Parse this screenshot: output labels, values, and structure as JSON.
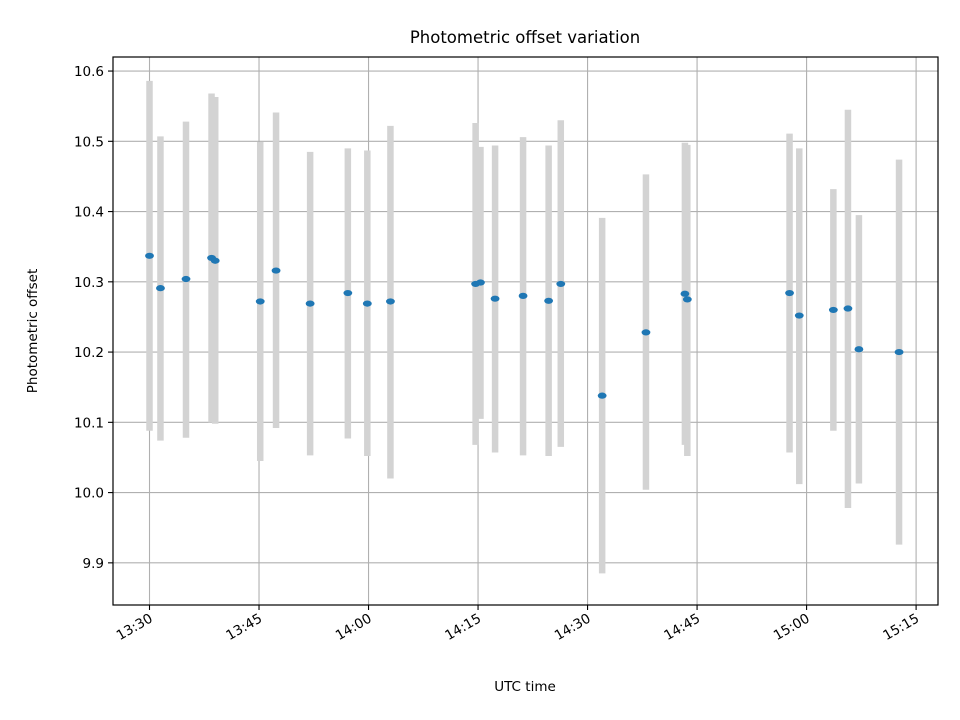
{
  "chart_data": {
    "type": "scatter",
    "title": "Photometric offset variation",
    "xlabel": "UTC time",
    "ylabel": "Photometric offset",
    "xlim": [
      "13:25",
      "15:18"
    ],
    "ylim": [
      9.84,
      10.62
    ],
    "x_ticks": [
      "13:30",
      "13:45",
      "14:00",
      "14:15",
      "14:30",
      "14:45",
      "15:00",
      "15:15"
    ],
    "y_ticks": [
      "9.9",
      "10.0",
      "10.1",
      "10.2",
      "10.3",
      "10.4",
      "10.5",
      "10.6"
    ],
    "grid": true,
    "legend": "none",
    "colors": {
      "points": "#1f77b4",
      "errorbars": "#d3d3d3",
      "grid": "#b0b0b0"
    },
    "series": [
      {
        "points": [
          {
            "x": "13:30:00",
            "y": 10.337,
            "y_low": 10.088,
            "y_high": 10.586
          },
          {
            "x": "13:31:30",
            "y": 10.291,
            "y_low": 10.074,
            "y_high": 10.507
          },
          {
            "x": "13:35:00",
            "y": 10.304,
            "y_low": 10.078,
            "y_high": 10.528
          },
          {
            "x": "13:38:30",
            "y": 10.334,
            "y_low": 10.1,
            "y_high": 10.568
          },
          {
            "x": "13:39:00",
            "y": 10.33,
            "y_low": 10.098,
            "y_high": 10.563
          },
          {
            "x": "13:45:10",
            "y": 10.272,
            "y_low": 10.045,
            "y_high": 10.499
          },
          {
            "x": "13:47:20",
            "y": 10.316,
            "y_low": 10.092,
            "y_high": 10.541
          },
          {
            "x": "13:52:00",
            "y": 10.269,
            "y_low": 10.053,
            "y_high": 10.485
          },
          {
            "x": "13:57:10",
            "y": 10.284,
            "y_low": 10.077,
            "y_high": 10.49
          },
          {
            "x": "13:59:50",
            "y": 10.269,
            "y_low": 10.052,
            "y_high": 10.487
          },
          {
            "x": "14:03:00",
            "y": 10.272,
            "y_low": 10.02,
            "y_high": 10.522
          },
          {
            "x": "14:14:40",
            "y": 10.297,
            "y_low": 10.068,
            "y_high": 10.526
          },
          {
            "x": "14:15:20",
            "y": 10.299,
            "y_low": 10.105,
            "y_high": 10.492
          },
          {
            "x": "14:17:20",
            "y": 10.276,
            "y_low": 10.057,
            "y_high": 10.494
          },
          {
            "x": "14:21:10",
            "y": 10.28,
            "y_low": 10.053,
            "y_high": 10.506
          },
          {
            "x": "14:24:40",
            "y": 10.273,
            "y_low": 10.052,
            "y_high": 10.494
          },
          {
            "x": "14:26:20",
            "y": 10.297,
            "y_low": 10.065,
            "y_high": 10.53
          },
          {
            "x": "14:32:00",
            "y": 10.138,
            "y_low": 9.885,
            "y_high": 10.391
          },
          {
            "x": "14:38:00",
            "y": 10.228,
            "y_low": 10.004,
            "y_high": 10.453
          },
          {
            "x": "14:43:20",
            "y": 10.283,
            "y_low": 10.068,
            "y_high": 10.498
          },
          {
            "x": "14:43:40",
            "y": 10.275,
            "y_low": 10.052,
            "y_high": 10.495
          },
          {
            "x": "14:57:40",
            "y": 10.284,
            "y_low": 10.057,
            "y_high": 10.511
          },
          {
            "x": "14:59:00",
            "y": 10.252,
            "y_low": 10.012,
            "y_high": 10.49
          },
          {
            "x": "15:03:40",
            "y": 10.26,
            "y_low": 10.088,
            "y_high": 10.432
          },
          {
            "x": "15:05:40",
            "y": 10.262,
            "y_low": 9.978,
            "y_high": 10.545
          },
          {
            "x": "15:07:10",
            "y": 10.204,
            "y_low": 10.013,
            "y_high": 10.395
          },
          {
            "x": "15:12:40",
            "y": 10.2,
            "y_low": 9.926,
            "y_high": 10.474
          }
        ]
      }
    ]
  }
}
